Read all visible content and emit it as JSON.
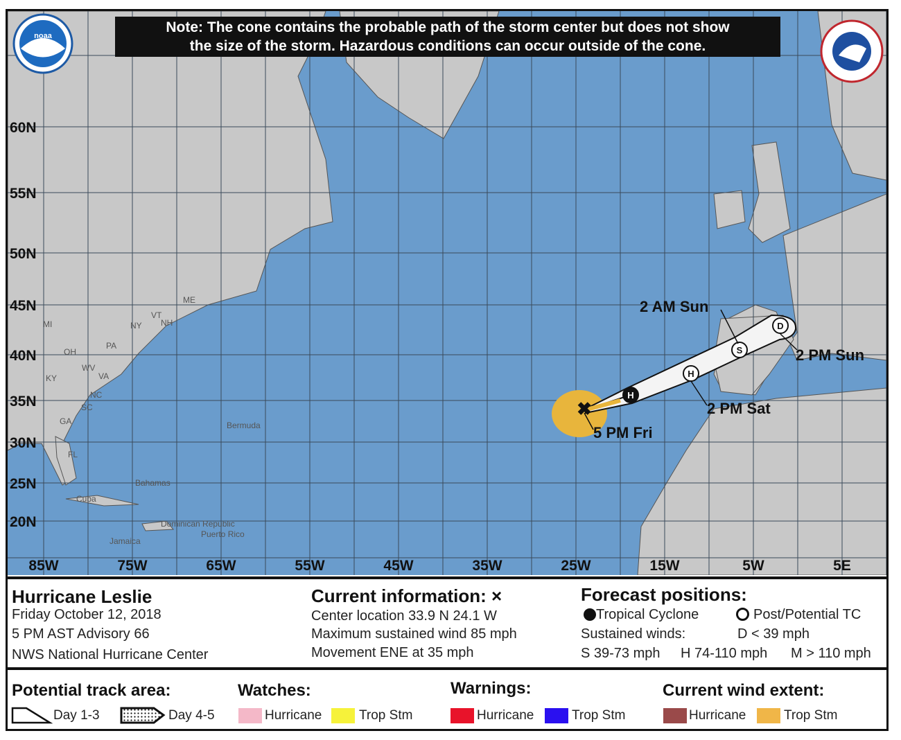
{
  "note": {
    "line1": "Note: The cone contains the probable path of the storm center but does not show",
    "line2": "the size of the storm. Hazardous conditions can occur outside of the cone."
  },
  "logos": {
    "left": "NOAA",
    "right": "NATIONAL WEATHER SERVICE"
  },
  "map": {
    "colors": {
      "ocean": "#6a9ccc",
      "land": "#c8c8c8",
      "grid": "#3a4a5a",
      "cone": "#f4f4f4",
      "wind_extent": "#e8b53c"
    },
    "lat_labels": [
      "60N",
      "55N",
      "50N",
      "45N",
      "40N",
      "35N",
      "30N",
      "25N",
      "20N"
    ],
    "lon_labels": [
      "85W",
      "75W",
      "65W",
      "55W",
      "45W",
      "35W",
      "25W",
      "15W",
      "5W",
      "5E"
    ],
    "place_labels": [
      "MI",
      "NY",
      "PA",
      "OH",
      "WV",
      "VA",
      "KY",
      "NC",
      "SC",
      "GA",
      "FL",
      "ME",
      "VT",
      "NH",
      "Bermuda",
      "Bahamas",
      "Cuba",
      "Jamaica",
      "Dominican Republic",
      "Puerto Rico"
    ],
    "track_labels": [
      "5 PM Fri",
      "2 PM Sat",
      "2 AM Sun",
      "2 PM Sun"
    ],
    "track_points": [
      {
        "type": "current",
        "symbol": "X"
      },
      {
        "type": "forecast",
        "symbol": "H",
        "filled": true
      },
      {
        "type": "forecast",
        "symbol": "H",
        "filled": false
      },
      {
        "type": "forecast",
        "symbol": "S",
        "filled": false
      },
      {
        "type": "forecast",
        "symbol": "D",
        "filled": false
      }
    ]
  },
  "storm": {
    "name": "Hurricane Leslie",
    "date": "Friday October 12, 2018",
    "advisory": "5 PM AST Advisory 66",
    "center": "NWS National Hurricane Center"
  },
  "current": {
    "title": "Current information:",
    "symbol": "×",
    "location": "Center location 33.9 N 24.1 W",
    "wind": "Maximum sustained wind 85 mph",
    "movement": "Movement ENE at 35 mph"
  },
  "forecast": {
    "title": "Forecast positions:",
    "tc": "Tropical Cyclone",
    "ptc": "Post/Potential TC",
    "sustained": "Sustained winds:",
    "d": "D < 39 mph",
    "s": "S 39-73 mph",
    "hh": "H 74-110 mph",
    "m": "M > 110 mph"
  },
  "legend": {
    "track_title": "Potential track area:",
    "day13": "Day 1-3",
    "day45": "Day 4-5",
    "watches_title": "Watches:",
    "warnings_title": "Warnings:",
    "wind_title": "Current wind extent:",
    "hurricane": "Hurricane",
    "tropstm": "Trop Stm",
    "colors": {
      "watch_hurricane": "#f4b8c8",
      "watch_trop": "#f6f23a",
      "warn_hurricane": "#e8132a",
      "warn_trop": "#2a10f0",
      "wind_hurricane": "#9a4a4a",
      "wind_trop": "#f0b648"
    }
  }
}
